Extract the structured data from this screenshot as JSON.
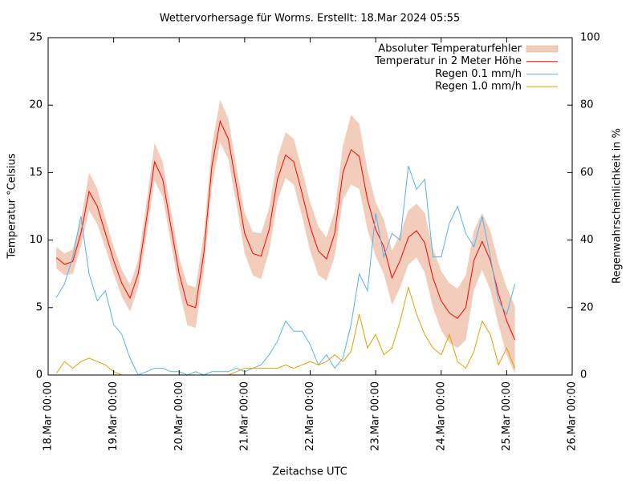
{
  "chart_data": {
    "type": "line",
    "title": "Wettervorhersage für Worms. Erstellt: 18.Mar 2024 05:55",
    "x_label": "Zeitachse UTC",
    "y_label": "Temperatur °Celsius",
    "y2_label": "Regenwahrscheinlichkeit in %",
    "x": [
      3,
      6,
      9,
      12,
      15,
      18,
      21,
      24,
      27,
      30,
      33,
      36,
      39,
      42,
      45,
      48,
      51,
      54,
      57,
      60,
      63,
      66,
      69,
      72,
      75,
      78,
      81,
      84,
      87,
      90,
      93,
      96,
      99,
      102,
      105,
      108,
      111,
      114,
      117,
      120,
      123,
      126,
      129,
      132,
      135,
      138,
      141,
      144,
      147,
      150,
      153,
      156,
      159,
      162,
      165,
      168,
      171
    ],
    "xlim": [
      0,
      192
    ],
    "xticks": [
      {
        "value": 0,
        "label": "18.Mar 00:00"
      },
      {
        "value": 24,
        "label": "19.Mar 00:00"
      },
      {
        "value": 48,
        "label": "20.Mar 00:00"
      },
      {
        "value": 72,
        "label": "21.Mar 00:00"
      },
      {
        "value": 96,
        "label": "22.Mar 00:00"
      },
      {
        "value": 120,
        "label": "23.Mar 00:00"
      },
      {
        "value": 144,
        "label": "24.Mar 00:00"
      },
      {
        "value": 168,
        "label": "25.Mar 00:00"
      },
      {
        "value": 192,
        "label": "26.Mar 00:00"
      }
    ],
    "ylim": [
      0,
      25
    ],
    "yticks": [
      0,
      5,
      10,
      15,
      20,
      25
    ],
    "y2lim": [
      0,
      100
    ],
    "y2ticks": [
      0,
      20,
      40,
      60,
      80,
      100
    ],
    "legend": "upper right",
    "series": [
      {
        "name": "Absoluter Temperaturfehler",
        "type": "band",
        "around": 1,
        "color": "#f2cdbb",
        "values": [
          0.8,
          0.8,
          0.9,
          1,
          1.4,
          1.3,
          1.1,
          1,
          1,
          1,
          1,
          1.2,
          1.4,
          1.3,
          1.2,
          1.2,
          1.5,
          1.5,
          1.4,
          1.5,
          1.6,
          1.5,
          1.4,
          1.5,
          1.6,
          1.7,
          1.6,
          1.6,
          1.7,
          1.7,
          1.7,
          1.8,
          1.8,
          1.6,
          1.7,
          2,
          2.6,
          2.4,
          2.2,
          2,
          2,
          2,
          2,
          2,
          2,
          2.2,
          2.2,
          2.2,
          2.2,
          2.2,
          2.4,
          2.2,
          2.1,
          2.2,
          2.3,
          2.5,
          2.5
        ]
      },
      {
        "name": "Temperatur in 2 Meter Höhe",
        "color": "#ff0000",
        "values": [
          8.7,
          8.2,
          8.4,
          10.5,
          13.6,
          12.5,
          10.5,
          8.5,
          6.8,
          5.7,
          7.5,
          11.5,
          15.8,
          14.5,
          11,
          7.5,
          5.2,
          5.0,
          9,
          15.5,
          18.8,
          17.5,
          14,
          10.5,
          9,
          8.8,
          10.8,
          14.5,
          16.3,
          15.8,
          13.5,
          11,
          9.2,
          8.6,
          10.5,
          15,
          16.7,
          16.2,
          13,
          10.8,
          9.5,
          7.2,
          8.5,
          10.2,
          10.7,
          9.8,
          7.2,
          5.5,
          4.6,
          4.2,
          5,
          8.5,
          9.9,
          8.5,
          6,
          4,
          2.6
        ]
      },
      {
        "name": "Regen 0.1 mm/h",
        "color": "#56b4e9",
        "axis": "y2",
        "values": [
          23,
          27,
          35,
          47,
          30,
          22,
          25,
          15,
          12,
          5,
          0,
          1,
          2,
          2,
          1,
          1,
          0,
          1,
          0,
          1,
          1,
          1,
          2,
          1,
          2,
          3,
          6,
          10,
          16,
          13,
          13,
          9,
          3,
          6,
          2,
          5,
          15,
          30,
          25,
          48,
          35,
          42,
          40,
          62,
          55,
          58,
          35,
          35,
          45,
          50,
          42,
          38,
          47,
          35,
          22,
          18,
          27
        ]
      },
      {
        "name": "Regen 1.0 mm/h",
        "color": "#e69f00",
        "axis": "y2",
        "values": [
          0.5,
          4,
          2,
          4,
          5,
          4,
          3,
          1,
          0,
          0,
          0,
          0,
          0,
          0,
          0,
          0,
          0,
          0,
          0,
          0,
          0,
          0,
          1,
          2,
          2,
          2,
          2,
          2,
          3,
          2,
          3,
          4,
          3,
          4,
          6,
          4,
          7,
          18,
          8,
          12,
          6,
          8,
          16,
          26,
          18,
          12,
          8,
          6,
          12,
          4,
          2,
          7,
          16,
          12,
          3,
          8,
          2
        ]
      }
    ]
  }
}
